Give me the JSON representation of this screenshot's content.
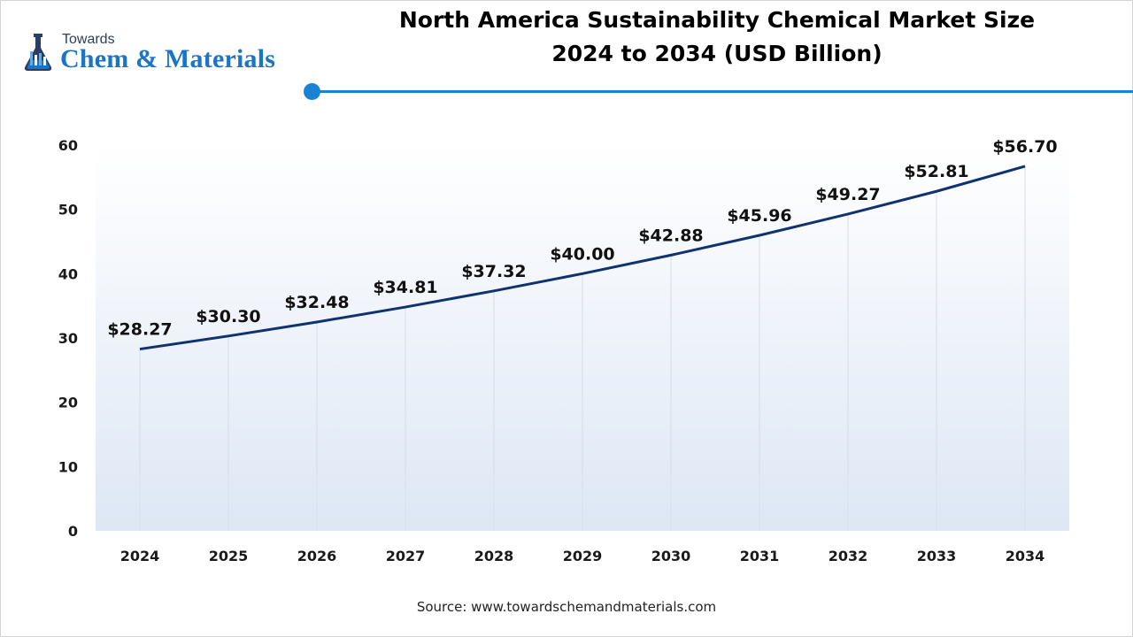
{
  "logo": {
    "line1": "Towards",
    "line2": "Chem & Materials"
  },
  "chart_data": {
    "type": "area",
    "title_line1": "North America Sustainability Chemical Market Size",
    "title_line2": "2024 to 2034 (USD Billion)",
    "categories": [
      "2024",
      "2025",
      "2026",
      "2027",
      "2028",
      "2029",
      "2030",
      "2031",
      "2032",
      "2033",
      "2034"
    ],
    "values": [
      28.27,
      30.3,
      32.48,
      34.81,
      37.32,
      40.0,
      42.88,
      45.96,
      49.27,
      52.81,
      56.7
    ],
    "data_labels": [
      "$28.27",
      "$30.30",
      "$32.48",
      "$34.81",
      "$37.32",
      "$40.00",
      "$42.88",
      "$45.96",
      "$49.27",
      "$52.81",
      "$56.70"
    ],
    "y_ticks": [
      0,
      10,
      20,
      30,
      40,
      50,
      60
    ],
    "ylim": [
      0,
      60
    ],
    "xlabel": "",
    "ylabel": "",
    "legend": "none",
    "colors": {
      "line": "#0f3270",
      "area_top": "#ffffff",
      "area_bottom": "#dde7f5",
      "gridline": "#d8dde6",
      "accent": "#1a82d4"
    }
  },
  "source": "Source: www.towardschemandmaterials.com"
}
